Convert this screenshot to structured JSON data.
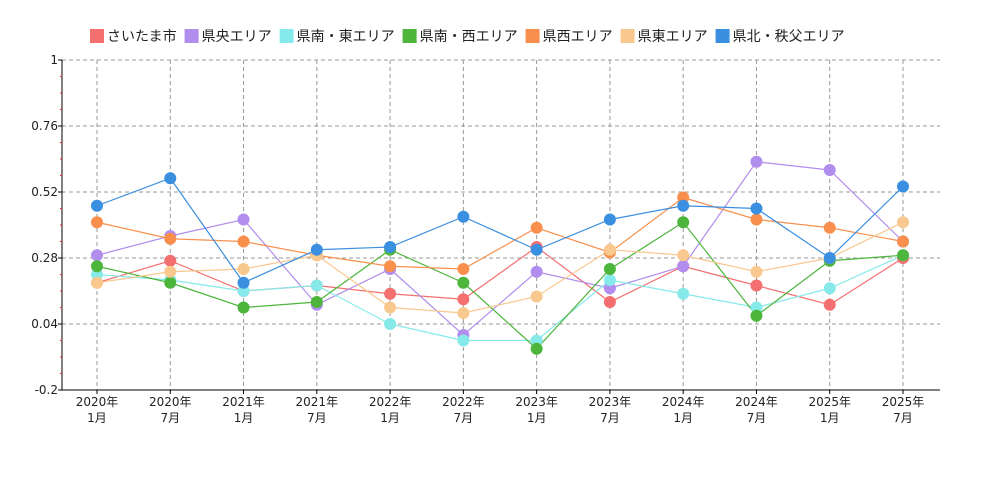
{
  "chart_data": {
    "type": "line",
    "title": "",
    "xlabel": "",
    "ylabel": "",
    "ylim": [
      -0.2,
      1
    ],
    "y_ticks": [
      -0.2,
      0.04,
      0.28,
      0.52,
      0.76,
      1
    ],
    "y_tick_labels": [
      "-0.2",
      "0.04",
      "0.28",
      "0.52",
      "0.76",
      "1"
    ],
    "grid": true,
    "legend_position": "top",
    "categories": [
      [
        "2020年",
        "1月"
      ],
      [
        "2020年",
        "7月"
      ],
      [
        "2021年",
        "1月"
      ],
      [
        "2021年",
        "7月"
      ],
      [
        "2022年",
        "1月"
      ],
      [
        "2022年",
        "7月"
      ],
      [
        "2023年",
        "1月"
      ],
      [
        "2023年",
        "7月"
      ],
      [
        "2024年",
        "1月"
      ],
      [
        "2024年",
        "7月"
      ],
      [
        "2025年",
        "1月"
      ],
      [
        "2025年",
        "7月"
      ]
    ],
    "series": [
      {
        "name": "さいたま市",
        "color": "#f46f6f",
        "values": [
          0.19,
          0.27,
          0.16,
          0.18,
          0.15,
          0.13,
          0.32,
          0.12,
          0.25,
          0.18,
          0.11,
          0.28
        ]
      },
      {
        "name": "県央エリア",
        "color": "#b18ded",
        "values": [
          0.29,
          0.36,
          0.42,
          0.11,
          0.24,
          0.0,
          0.23,
          0.17,
          0.25,
          0.63,
          0.6,
          0.34
        ]
      },
      {
        "name": "県南・東エリア",
        "color": "#87eaea",
        "values": [
          0.22,
          0.2,
          0.16,
          0.18,
          0.04,
          -0.02,
          -0.02,
          0.2,
          0.15,
          0.1,
          0.17,
          0.29
        ]
      },
      {
        "name": "県南・西エリア",
        "color": "#4db53c",
        "values": [
          0.25,
          0.19,
          0.1,
          0.12,
          0.31,
          0.19,
          -0.05,
          0.24,
          0.41,
          0.07,
          0.27,
          0.29
        ]
      },
      {
        "name": "県西エリア",
        "color": "#f88f4d",
        "values": [
          0.41,
          0.35,
          0.34,
          0.29,
          0.25,
          0.24,
          0.39,
          0.3,
          0.5,
          0.42,
          0.39,
          0.34
        ]
      },
      {
        "name": "県東エリア",
        "color": "#f9c88e",
        "values": [
          0.19,
          0.23,
          0.24,
          0.29,
          0.1,
          0.08,
          0.14,
          0.31,
          0.29,
          0.23,
          0.28,
          0.41
        ]
      },
      {
        "name": "県北・秩父エリア",
        "color": "#3a8fe0",
        "values": [
          0.47,
          0.57,
          0.19,
          0.31,
          0.32,
          0.43,
          0.31,
          0.42,
          0.47,
          0.46,
          0.28,
          0.54
        ]
      }
    ]
  }
}
